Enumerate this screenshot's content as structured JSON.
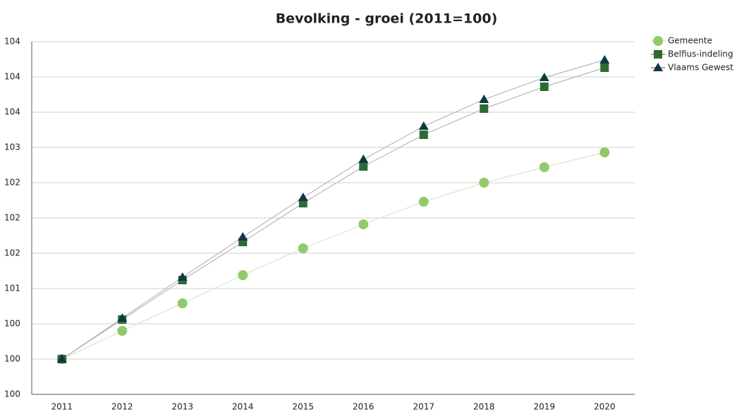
{
  "chart_data": {
    "type": "line",
    "title": "Bevolking - groei (2011=100)",
    "categories": [
      "2011",
      "2012",
      "2013",
      "2014",
      "2015",
      "2016",
      "2017",
      "2018",
      "2019",
      "2020"
    ],
    "series": [
      {
        "name": "Gemeente",
        "color": "#92c96a",
        "line_color": "#d8e8c4",
        "marker": "circle",
        "values": [
          100,
          100.4,
          100.79,
          101.19,
          101.57,
          101.91,
          102.23,
          102.5,
          102.72,
          102.93
        ]
      },
      {
        "name": "Belfius-indeling",
        "color": "#2e6b34",
        "line_color": "#b8b8b8",
        "marker": "square",
        "values": [
          100,
          100.56,
          101.12,
          101.66,
          102.21,
          102.73,
          103.18,
          103.55,
          103.86,
          104.13
        ]
      },
      {
        "name": "Vlaams Gewest",
        "color": "#0d3a40",
        "line_color": "#b8b8b8",
        "marker": "triangle",
        "values": [
          100,
          100.58,
          101.16,
          101.73,
          102.29,
          102.83,
          103.3,
          103.68,
          103.99,
          104.24
        ]
      }
    ],
    "ylim": [
      99.5,
      104.5
    ],
    "yticks": [
      {
        "value": 99.5,
        "label": "100"
      },
      {
        "value": 100,
        "label": "100"
      },
      {
        "value": 100.5,
        "label": "100"
      },
      {
        "value": 101,
        "label": "101"
      },
      {
        "value": 101.5,
        "label": "102"
      },
      {
        "value": 102,
        "label": "102"
      },
      {
        "value": 102.5,
        "label": "102"
      },
      {
        "value": 103,
        "label": "103"
      },
      {
        "value": 103.5,
        "label": "104"
      },
      {
        "value": 104,
        "label": "104"
      },
      {
        "value": 104.5,
        "label": "104"
      }
    ],
    "grid": true,
    "legend": "top-right"
  }
}
